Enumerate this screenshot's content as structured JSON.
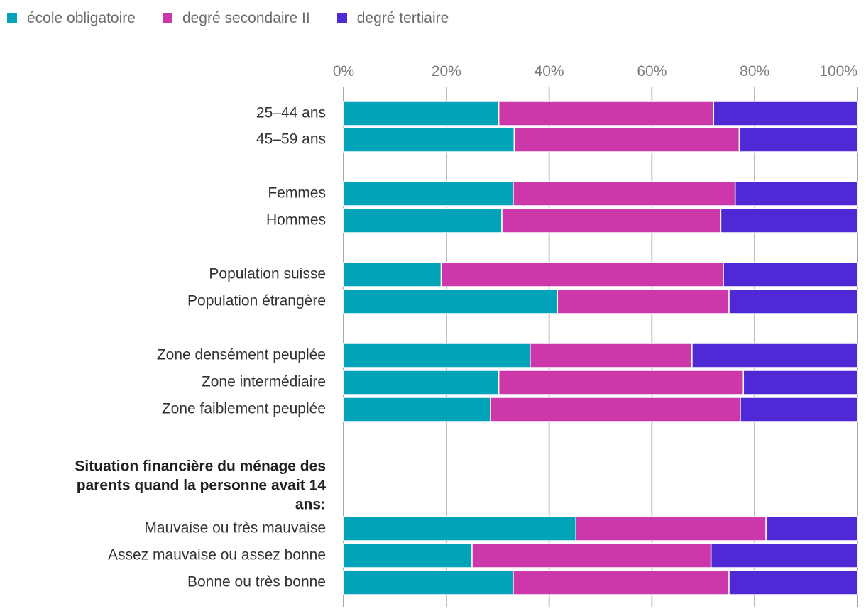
{
  "chart_data": {
    "type": "bar",
    "orientation": "horizontal",
    "stacked": true,
    "xlim": [
      0,
      100
    ],
    "x_ticks": [
      "0%",
      "20%",
      "40%",
      "60%",
      "80%",
      "100%"
    ],
    "grid": true,
    "legend_position": "top-left",
    "series": [
      {
        "name": "école obligatoire",
        "color": "#00A3B8"
      },
      {
        "name": "degré secondaire II",
        "color": "#CC38AA"
      },
      {
        "name": "degré tertiaire",
        "color": "#5029D6"
      }
    ],
    "rows": [
      {
        "label": "25–44 ans",
        "values": [
          30.2,
          41.8,
          28.0
        ]
      },
      {
        "label": "45–59 ans",
        "values": [
          33.2,
          43.8,
          23.0
        ]
      },
      {
        "label": "Femmes",
        "values": [
          33.0,
          43.2,
          23.8
        ]
      },
      {
        "label": "Hommes",
        "values": [
          30.8,
          42.6,
          26.6
        ]
      },
      {
        "label": "Population suisse",
        "values": [
          19.0,
          54.9,
          26.1
        ]
      },
      {
        "label": "Population étrangère",
        "values": [
          41.6,
          33.4,
          25.0
        ]
      },
      {
        "label": "Zone densément peuplée",
        "values": [
          36.3,
          31.5,
          32.2
        ]
      },
      {
        "label": "Zone intermédiaire",
        "values": [
          30.2,
          47.6,
          22.2
        ]
      },
      {
        "label": "Zone faiblement peuplée",
        "values": [
          28.6,
          48.6,
          22.8
        ]
      },
      {
        "label": "Situation financière du ménage des parents quand la personne avait 14 ans:",
        "heading": true,
        "heading_lines": [
          "Situation financière du ménage des",
          "parents quand la personne avait 14",
          "ans:"
        ]
      },
      {
        "label": "Mauvaise ou très mauvaise",
        "values": [
          45.2,
          37.0,
          17.8
        ]
      },
      {
        "label": "Assez mauvaise ou assez bonne",
        "values": [
          25.0,
          46.5,
          28.5
        ]
      },
      {
        "label": "Bonne ou très bonne",
        "values": [
          33.0,
          42.0,
          25.0
        ]
      }
    ]
  }
}
